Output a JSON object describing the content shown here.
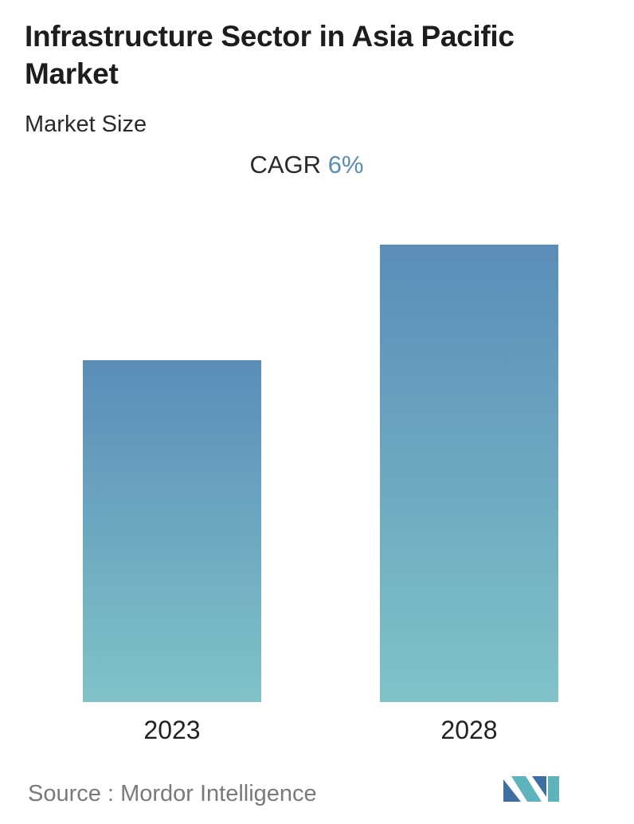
{
  "header": {
    "title": "Infrastructure Sector in Asia Pacific Market",
    "subtitle": "Market Size"
  },
  "cagr": {
    "label": "CAGR",
    "value": "6%"
  },
  "source": {
    "label": "Source :",
    "name": "Mordor Intelligence"
  },
  "colors": {
    "bar_top": "#5b8db8",
    "bar_bottom": "#80c3c8",
    "accent": "#5b8db3",
    "logo_dark": "#3f6fa0",
    "logo_light": "#5fb3bd"
  },
  "logo": {
    "icon": "mordor-intelligence-logo-icon"
  },
  "chart_data": {
    "type": "bar",
    "categories": [
      "2023",
      "2028"
    ],
    "values": [
      1.0,
      1.338
    ],
    "title": "Infrastructure Sector in Asia Pacific Market",
    "subtitle": "Market Size",
    "xlabel": "",
    "ylabel": "",
    "ylim": [
      0,
      1.338
    ],
    "grid": false,
    "legend": "none"
  }
}
